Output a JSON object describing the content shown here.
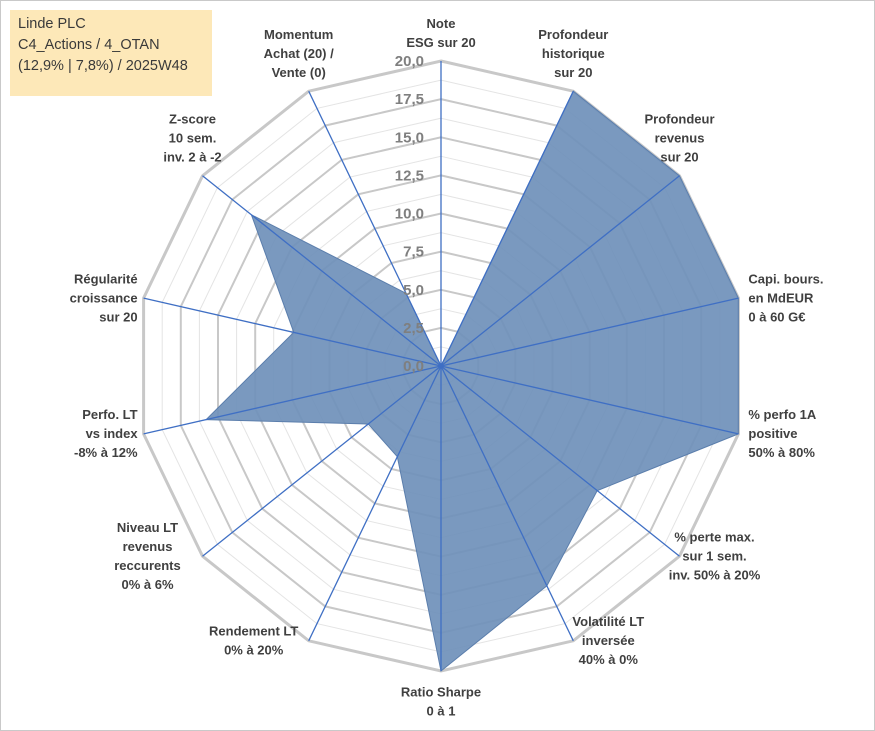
{
  "title": {
    "line1": "Linde PLC",
    "line2": "C4_Actions / 4_OTAN",
    "line3": "(12,9% | 7,8%) / 2025W48"
  },
  "chart_data": {
    "type": "radar",
    "r_range": [
      0,
      20
    ],
    "tick_values": [
      0,
      2.5,
      5,
      7.5,
      10,
      12.5,
      15,
      17.5,
      20
    ],
    "tick_labels": [
      "0,0",
      "2,5",
      "5,0",
      "7,5",
      "10,0",
      "12,5",
      "15,0",
      "17,5",
      "20,0"
    ],
    "categories": [
      [
        "Note",
        "ESG sur 20"
      ],
      [
        "Profondeur",
        "historique",
        "sur 20"
      ],
      [
        "Profondeur",
        "revenus",
        "sur 20"
      ],
      [
        "Capi. bours.",
        "en MdEUR",
        "0 à 60 G€"
      ],
      [
        "% perfo 1A",
        "positive",
        "50% à 80%"
      ],
      [
        "% perte max.",
        "sur 1 sem.",
        "inv. 50% à 20%"
      ],
      [
        "Volatilité LT",
        "inversée",
        "40% à 0%"
      ],
      [
        "Ratio Sharpe",
        "0 à 1"
      ],
      [
        "Rendement LT",
        "0% à 20%"
      ],
      [
        "Niveau LT",
        "revenus",
        "reccurents",
        "0% à 6%"
      ],
      [
        "Perfo. LT",
        "vs index",
        "-8% à 12%"
      ],
      [
        "Régularité",
        "croissance",
        "sur 20"
      ],
      [
        "Z-score",
        "10 sem.",
        "inv. 2 à -2"
      ],
      [
        "Momentum",
        "Achat (20) /",
        "Vente (0)"
      ]
    ],
    "series": [
      {
        "name": "Linde PLC",
        "values": [
          0,
          20,
          20,
          20,
          20,
          13.1,
          16.0,
          20,
          6.6,
          6.1,
          15.8,
          9.9,
          15.9,
          5.3
        ],
        "color": "#6f90ba"
      }
    ],
    "grid": true,
    "legend": "none"
  }
}
